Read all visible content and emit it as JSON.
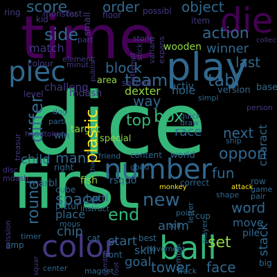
{
  "cloud": {
    "words": {
      "dice": "dice",
      "first": "first",
      "time": "time",
      "number": "number",
      "color": "color",
      "play": "play",
      "ball": "ball",
      "die": "die",
      "piece": "piec",
      "score": "score",
      "team": "team",
      "side": "side",
      "action": "action",
      "differ": "differ",
      "box": "box",
      "way": "way",
      "plastic": "plastic",
      "round": "round",
      "new": "new",
      "table": "tabl",
      "oppon": "oppon",
      "end": "end",
      "space": "space",
      "top": "top",
      "winner": "winner",
      "last": "last",
      "block": "block",
      "match": "match",
      "challeng": "challeng",
      "next": "next",
      "race": "race",
      "mani": "mani",
      "child": "child",
      "tower": "tower",
      "set": "set",
      "face": "face",
      "goal": "goal",
      "fun": "fun",
      "word": "word",
      "object": "object",
      "order": "order",
      "move": "move",
      "anim": "anim",
      "chip": "chip",
      "start": "start",
      "skill": "skill",
      "stack": "stack",
      "place": "place",
      "dexter": "dexter",
      "hole": "hole",
      "activ": "activ",
      "wooden": "wooden",
      "colour": "colour",
      "fast": "fast",
      "small": "small",
      "floor": "floor",
      "possibl": "possibl",
      "item": "item",
      "monster": "monster",
      "version": "version",
      "base": "base",
      "charact": "charact",
      "target": "target",
      "special": "special",
      "mdash": "mdash",
      "second": "second",
      "area": "area",
      "marbl": "marbl",
      "fish": "fish",
      "rsquo": "rsquo",
      "battl": "battl",
      "world": "world",
      "content": "content",
      "friend": "friend",
      "correct": "correct",
      "row": "row",
      "pile": "pile",
      "game": "game",
      "pair": "pair",
      "ship": "ship",
      "part": "part",
      "player": "player",
      "cube": "cube",
      "nbsp": "nbsp",
      "amp": "amp",
      "timer": "timer",
      "tri": "tri",
      "rule": "rule",
      "mission": "mission",
      "disc": "disc",
      "ring": "ring",
      "kid": "kid",
      "ladder": "ladder",
      "center": "center",
      "big": "big",
      "magnet": "magnet",
      "track": "track",
      "foot": "foot",
      "combin": "combin",
      "level": "level",
      "treasur": "treasur",
      "win": "win",
      "dog": "dog",
      "parti": "parti",
      "headtoken": "headtoken",
      "right": "right",
      "instruct": "instruct",
      "point": "point",
      "pictur": "pictur",
      "mous": "mous",
      "cat": "cat",
      "front": "front",
      "best": "best",
      "movement": "movement",
      "symbol": "symbol",
      "letter": "letter",
      "straight": "straight",
      "puzzl": "puzzl",
      "roll": "roll",
      "cup": "cup",
      "shape": "shape",
      "attack": "attack",
      "good": "good",
      "simpl": "simpl",
      "stick": "stick",
      "variant": "variant",
      "expans": "expans",
      "minut": "minut",
      "element": "element",
      "stone": "stone",
      "collect": "collect",
      "person": "person",
      "quick": "quick",
      "draw": "draw",
      "card": "card",
      "field": "field",
      "squar": "squar",
      "head": "head",
      "task": "task",
      "black": "black",
      "posit": "posit",
      "rank": "rank",
      "valu": "valu",
      "unit": "unit",
      "publish": "publish",
      "attempt": "attempt",
      "grid": "grid",
      "monkey": "monkey",
      "thing": "thing",
      "total": "total",
      "even": "even",
      "sever": "sever",
      "exampl": "exampl",
      "take": "take",
      "pawn": "pawn",
      "zone": "zone",
      "point2": "point"
    },
    "colors": {
      "green": "#35b779",
      "teal": "#21918c",
      "blue": "#31688e",
      "indigo": "#443983",
      "purple": "#440154",
      "lime": "#90d743",
      "yellow": "#fde725"
    }
  }
}
